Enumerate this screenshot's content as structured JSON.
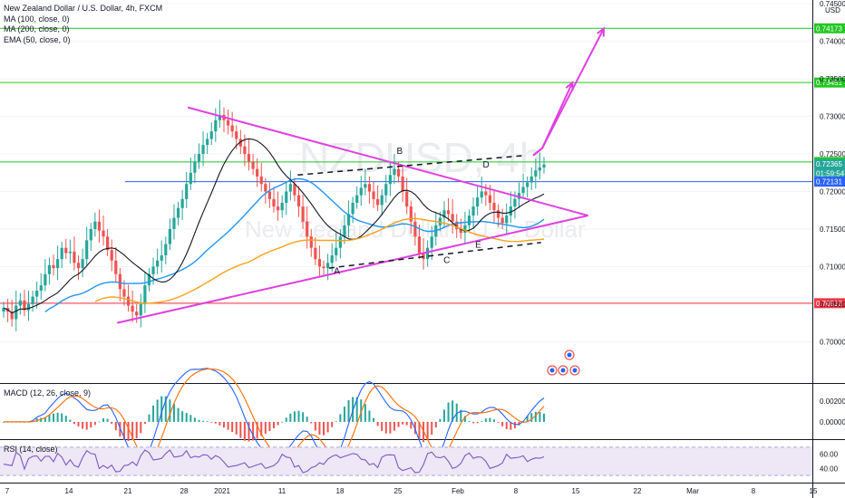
{
  "legend": {
    "title": "New Zealand Dollar / U.S. Dollar, 4h, FXCM",
    "ma100": "MA (100, close, 0)",
    "ma200": "MA (200, close, 0)",
    "ema50": "EMA (50, close, 0)"
  },
  "watermark": {
    "symbol": "NZDUSD, 4h",
    "name": "New Zealand Dollar / U.S. Dollar"
  },
  "currency": "USD",
  "colors": {
    "ma100": "#131722",
    "ma200": "#f7a21b",
    "ema50": "#2196f3",
    "triangle": "#e040e0",
    "green_line": "#22c722",
    "red_line": "#f23645",
    "blue_line": "#2962ff",
    "macd": "#2962ff",
    "signal": "#ff6d00",
    "hist_pos": "#26a69a",
    "hist_neg": "#ef5350",
    "rsi": "#7e57c2",
    "rsi_band": "#ede7f6"
  },
  "indicators": {
    "macd_label": "MACD (12, 26, close, 9)",
    "rsi_label": "RSI (14, close)"
  },
  "chart_data": {
    "type": "candlestick",
    "title": "New Zealand Dollar / U.S. Dollar, 4h, FXCM",
    "price_axis": {
      "range": [
        0.6945,
        0.7455
      ],
      "ticks": [
        "0.70000",
        "0.70500",
        "0.71000",
        "0.71500",
        "0.72000",
        "0.72500",
        "0.73000",
        "0.73500",
        "0.74000",
        "0.74500"
      ]
    },
    "time_axis": {
      "labels": [
        "7",
        "14",
        "21",
        "28",
        "2021",
        "11",
        "18",
        "25",
        "Feb",
        "8",
        "15",
        "22",
        "Mar",
        "8",
        "15"
      ]
    },
    "price_tags": [
      {
        "label": "0.74173",
        "value": 0.74173,
        "color": "#22c722"
      },
      {
        "label": "0.73451",
        "value": 0.73451,
        "color": "#22c722"
      },
      {
        "label": "0.72393",
        "value": 0.72393,
        "color": "#22c722"
      },
      {
        "label": "0.72365",
        "value": 0.72365,
        "color": "#26a69a"
      },
      {
        "label": "01:59:54",
        "value": 0.7224,
        "color": "#26a69a"
      },
      {
        "label": "0.72131",
        "value": 0.72131,
        "color": "#2962ff"
      },
      {
        "label": "0.70513",
        "value": 0.70513,
        "color": "#f23645"
      }
    ],
    "horizontal_levels": [
      {
        "value": 0.74173,
        "color": "#22c722"
      },
      {
        "value": 0.73451,
        "color": "#22c722"
      },
      {
        "value": 0.72393,
        "color": "#22c722"
      },
      {
        "value": 0.72131,
        "color": "#2962ff"
      },
      {
        "value": 0.70513,
        "color": "#f23645"
      }
    ],
    "close_series": [
      0.7045,
      0.704,
      0.703,
      0.7048,
      0.7055,
      0.7042,
      0.705,
      0.706,
      0.7068,
      0.7075,
      0.709,
      0.7102,
      0.7098,
      0.711,
      0.7125,
      0.7118,
      0.712,
      0.7105,
      0.7098,
      0.711,
      0.7135,
      0.715,
      0.716,
      0.7148,
      0.714,
      0.7122,
      0.7108,
      0.709,
      0.707,
      0.706,
      0.7048,
      0.704,
      0.7035,
      0.705,
      0.7075,
      0.709,
      0.71,
      0.7108,
      0.7115,
      0.713,
      0.715,
      0.7165,
      0.7178,
      0.719,
      0.721,
      0.7225,
      0.724,
      0.725,
      0.7262,
      0.727,
      0.728,
      0.7295,
      0.7302,
      0.7295,
      0.7288,
      0.728,
      0.727,
      0.726,
      0.725,
      0.724,
      0.723,
      0.722,
      0.721,
      0.72,
      0.719,
      0.718,
      0.7175,
      0.7185,
      0.72,
      0.721,
      0.7195,
      0.718,
      0.716,
      0.714,
      0.7125,
      0.711,
      0.71,
      0.7098,
      0.7105,
      0.7115,
      0.7125,
      0.714,
      0.7155,
      0.717,
      0.7185,
      0.7195,
      0.7205,
      0.721,
      0.72,
      0.719,
      0.7182,
      0.7195,
      0.721,
      0.7222,
      0.723,
      0.722,
      0.72,
      0.718,
      0.716,
      0.714,
      0.7118,
      0.711,
      0.7125,
      0.714,
      0.7155,
      0.7165,
      0.7175,
      0.717,
      0.716,
      0.715,
      0.7145,
      0.7155,
      0.7168,
      0.718,
      0.7192,
      0.72,
      0.7195,
      0.7185,
      0.7175,
      0.7165,
      0.7158,
      0.7168,
      0.718,
      0.719,
      0.7198,
      0.7206,
      0.7212,
      0.722,
      0.7228,
      0.7232,
      0.7236
    ],
    "triangle": {
      "upper_line": [
        {
          "x": "2020-12-30",
          "y": 0.7312
        },
        {
          "x": "2021-02-19",
          "y": 0.7168
        }
      ],
      "lower_line": [
        {
          "x": "2020-12-21",
          "y": 0.7025
        },
        {
          "x": "2021-02-19",
          "y": 0.7168
        }
      ]
    },
    "dashed_channel": {
      "upper": [
        {
          "x": "2021-01-13",
          "y": 0.7222
        },
        {
          "x": "2021-02-11",
          "y": 0.7248
        }
      ],
      "lower": [
        {
          "x": "2021-01-17",
          "y": 0.7098
        },
        {
          "x": "2021-02-13",
          "y": 0.7132
        }
      ]
    },
    "projection_arrows": [
      {
        "from": {
          "x": "2021-02-12",
          "y": 0.7248
        },
        "to": {
          "x": "2021-02-17",
          "y": 0.7345
        }
      },
      {
        "from": {
          "x": "2021-02-12",
          "y": 0.7248
        },
        "to": {
          "x": "2021-02-21",
          "y": 0.7417
        }
      }
    ],
    "wave_labels": [
      {
        "label": "A",
        "x": "2021-01-18",
        "y": 0.709
      },
      {
        "label": "B",
        "x": "2021-01-26",
        "y": 0.725
      },
      {
        "label": "C",
        "x": "2021-02-01",
        "y": 0.7105
      },
      {
        "label": "D",
        "x": "2021-02-06",
        "y": 0.7232
      },
      {
        "label": "E",
        "x": "2021-02-05",
        "y": 0.7125
      }
    ],
    "moving_averages": [
      "MA (100, close, 0)",
      "MA (200, close, 0)",
      "EMA (50, close, 0)"
    ],
    "macd_panel": {
      "label": "MACD (12, 26, close, 9)",
      "ticks": [
        "0.00200",
        "0.00000"
      ],
      "range": [
        -0.0015,
        0.0035
      ]
    },
    "rsi_panel": {
      "label": "RSI (14, close)",
      "ticks": [
        "60.00",
        "40.00"
      ],
      "range": [
        20,
        80
      ],
      "band": [
        30,
        70
      ]
    }
  }
}
